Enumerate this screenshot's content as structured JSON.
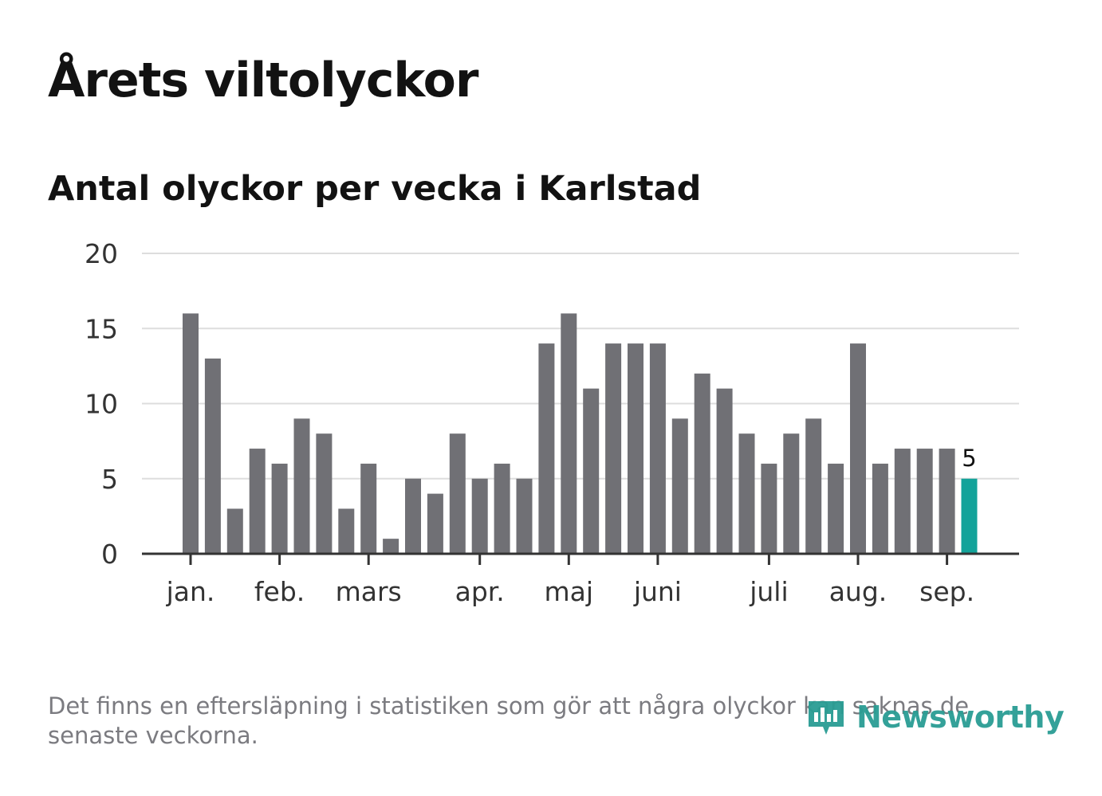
{
  "title": "Årets viltolyckor",
  "subtitle": "Antal olyckor per vecka i Karlstad",
  "footnote": "Det finns en eftersläpning i statistiken som gör att några olyckor kan saknas de senaste veckorna.",
  "brand": {
    "name": "Newsworthy",
    "icon": "newsworthy-logo-icon"
  },
  "colors": {
    "bar": "#707075",
    "highlight": "#13a39a",
    "grid": "#dddddd",
    "axis": "#333333"
  },
  "chart_data": {
    "type": "bar",
    "title": "Antal olyckor per vecka i Karlstad",
    "xlabel": "",
    "ylabel": "",
    "ylim": [
      0,
      20
    ],
    "yticks": [
      0,
      5,
      10,
      15,
      20
    ],
    "grid": true,
    "values": [
      16,
      13,
      3,
      7,
      6,
      9,
      8,
      3,
      6,
      1,
      5,
      4,
      8,
      5,
      6,
      5,
      14,
      16,
      11,
      14,
      14,
      14,
      9,
      12,
      11,
      8,
      6,
      8,
      9,
      6,
      14,
      6,
      7,
      7,
      7,
      5
    ],
    "highlight_index": 35,
    "highlight_label": "5",
    "month_ticks": [
      {
        "label": "jan.",
        "week_index": 0
      },
      {
        "label": "feb.",
        "week_index": 4
      },
      {
        "label": "mars",
        "week_index": 8
      },
      {
        "label": "apr.",
        "week_index": 13
      },
      {
        "label": "maj",
        "week_index": 17
      },
      {
        "label": "juni",
        "week_index": 21
      },
      {
        "label": "juli",
        "week_index": 26
      },
      {
        "label": "aug.",
        "week_index": 30
      },
      {
        "label": "sep.",
        "week_index": 34
      }
    ]
  }
}
